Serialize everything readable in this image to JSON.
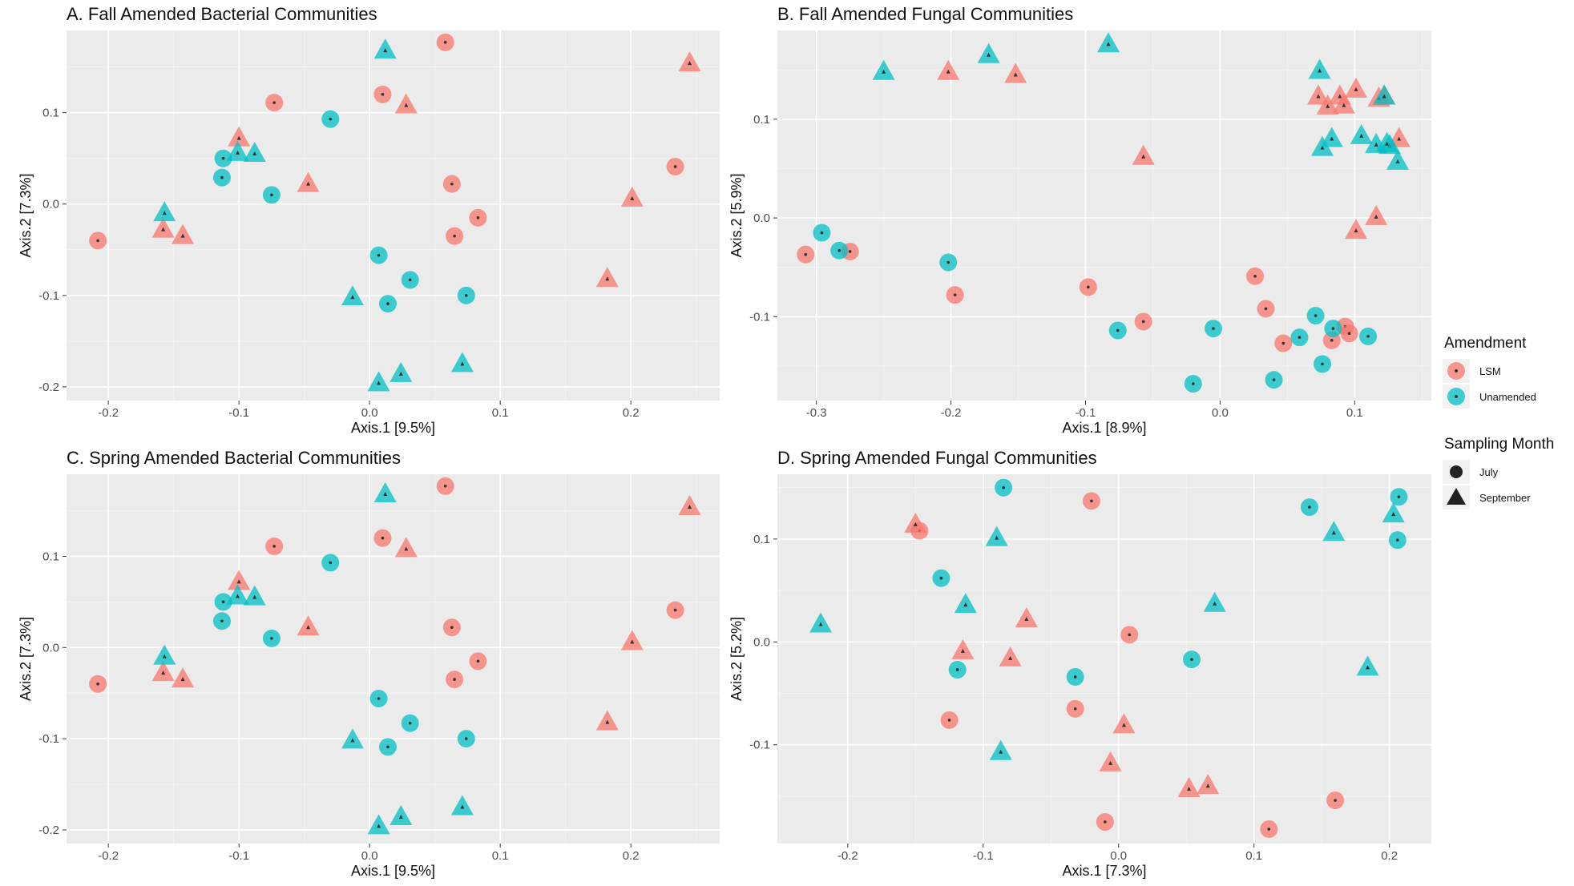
{
  "legend": {
    "amendment_title": "Amendment",
    "amendment_items": [
      {
        "label": "LSM",
        "color": "#F8766D"
      },
      {
        "label": "Unamended",
        "color": "#00BFC4"
      }
    ],
    "month_title": "Sampling Month",
    "month_items": [
      {
        "label": "July",
        "shape": "circle"
      },
      {
        "label": "September",
        "shape": "triangle"
      }
    ]
  },
  "chart_data": [
    {
      "type": "scatter",
      "title": "A. Fall Amended Bacterial Communities",
      "xlabel": "Axis.1   [9.5%]",
      "ylabel": "Axis.2   [7.3%]",
      "xlim": [
        -0.232,
        0.268
      ],
      "ylim": [
        -0.215,
        0.19
      ],
      "xticks": [
        -0.2,
        -0.1,
        0.0,
        0.1,
        0.2
      ],
      "xtick_labels": [
        "-0.2",
        "-0.1",
        "0.0",
        "0.1",
        "0.2"
      ],
      "yticks": [
        -0.2,
        -0.1,
        0.0,
        0.1
      ],
      "ytick_labels": [
        "-0.2",
        "-0.1",
        "0.0",
        "0.1"
      ],
      "grid": true,
      "series": [
        {
          "name": "LSM",
          "color": "#F8766D",
          "shape": "circle",
          "x": [
            -0.208,
            -0.073,
            0.058,
            0.01,
            0.063,
            0.065,
            0.083,
            0.234
          ],
          "y": [
            -0.04,
            0.111,
            0.177,
            0.12,
            0.022,
            -0.035,
            -0.015,
            0.041
          ]
        },
        {
          "name": "LSM",
          "color": "#F8766D",
          "shape": "triangle",
          "x": [
            -0.158,
            -0.143,
            -0.1,
            -0.047,
            0.028,
            0.182,
            0.201,
            0.245
          ],
          "y": [
            -0.028,
            -0.035,
            0.072,
            0.022,
            0.108,
            -0.082,
            0.006,
            0.154
          ]
        },
        {
          "name": "Unamended",
          "color": "#00BFC4",
          "shape": "circle",
          "x": [
            -0.112,
            -0.113,
            -0.075,
            -0.03,
            0.007,
            0.014,
            0.031,
            0.074
          ],
          "y": [
            0.05,
            0.029,
            0.01,
            0.093,
            -0.056,
            -0.109,
            -0.083,
            -0.1
          ]
        },
        {
          "name": "Unamended",
          "color": "#00BFC4",
          "shape": "triangle",
          "x": [
            -0.157,
            -0.101,
            -0.088,
            0.012,
            -0.013,
            0.007,
            0.024,
            0.071
          ],
          "y": [
            -0.01,
            0.056,
            0.055,
            0.168,
            -0.102,
            -0.196,
            -0.186,
            -0.175
          ]
        }
      ]
    },
    {
      "type": "scatter",
      "title": "B. Fall Amended Fungal Communities",
      "xlabel": "Axis.1   [8.9%]",
      "ylabel": "Axis.2   [5.9%]",
      "xlim": [
        -0.329,
        0.157
      ],
      "ylim": [
        -0.185,
        0.19
      ],
      "xticks": [
        -0.3,
        -0.2,
        -0.1,
        0.0,
        0.1
      ],
      "xtick_labels": [
        "-0.3",
        "-0.2",
        "-0.1",
        "0.0",
        "0.1"
      ],
      "yticks": [
        -0.1,
        0.0,
        0.1
      ],
      "ytick_labels": [
        "-0.1",
        "0.0",
        "0.1"
      ],
      "grid": true,
      "series": [
        {
          "name": "LSM",
          "color": "#F8766D",
          "shape": "circle",
          "x": [
            -0.308,
            -0.275,
            -0.197,
            -0.098,
            -0.057,
            0.026,
            0.034,
            0.047,
            0.083,
            0.093,
            0.096
          ],
          "y": [
            -0.037,
            -0.034,
            -0.078,
            -0.07,
            -0.105,
            -0.059,
            -0.092,
            -0.127,
            -0.124,
            -0.11,
            -0.117
          ]
        },
        {
          "name": "LSM",
          "color": "#F8766D",
          "shape": "triangle",
          "x": [
            -0.202,
            -0.152,
            -0.057,
            0.073,
            0.08,
            0.089,
            0.092,
            0.101,
            0.116,
            0.122,
            0.101,
            0.118,
            0.133
          ],
          "y": [
            0.148,
            0.145,
            0.062,
            0.123,
            0.113,
            0.123,
            0.114,
            0.13,
            0.001,
            0.123,
            -0.013,
            0.121,
            0.08
          ]
        },
        {
          "name": "Unamended",
          "color": "#00BFC4",
          "shape": "circle",
          "x": [
            -0.296,
            -0.283,
            -0.202,
            -0.076,
            -0.005,
            -0.02,
            0.04,
            0.059,
            0.071,
            0.076,
            0.084,
            0.11
          ],
          "y": [
            -0.015,
            -0.033,
            -0.045,
            -0.114,
            -0.112,
            -0.168,
            -0.164,
            -0.121,
            -0.099,
            -0.148,
            -0.112,
            -0.12
          ]
        },
        {
          "name": "Unamended",
          "color": "#00BFC4",
          "shape": "triangle",
          "x": [
            -0.25,
            -0.172,
            -0.083,
            0.074,
            0.076,
            0.083,
            0.105,
            0.116,
            0.122,
            0.126,
            0.124,
            0.132
          ],
          "y": [
            0.148,
            0.165,
            0.176,
            0.149,
            0.071,
            0.08,
            0.083,
            0.074,
            0.123,
            0.073,
            0.075,
            0.057
          ]
        }
      ]
    },
    {
      "type": "scatter",
      "title": "C. Spring Amended Bacterial Communities",
      "xlabel": "Axis.1   [9.5%]",
      "ylabel": "Axis.2   [7.3%]",
      "xlim": [
        -0.232,
        0.268
      ],
      "ylim": [
        -0.215,
        0.19
      ],
      "xticks": [
        -0.2,
        -0.1,
        0.0,
        0.1,
        0.2
      ],
      "xtick_labels": [
        "-0.2",
        "-0.1",
        "0.0",
        "0.1",
        "0.2"
      ],
      "yticks": [
        -0.2,
        -0.1,
        0.0,
        0.1
      ],
      "ytick_labels": [
        "-0.2",
        "-0.1",
        "0.0",
        "0.1"
      ],
      "grid": true,
      "series": [
        {
          "name": "LSM",
          "color": "#F8766D",
          "shape": "circle",
          "x": [
            -0.208,
            -0.073,
            0.058,
            0.01,
            0.063,
            0.065,
            0.083,
            0.234
          ],
          "y": [
            -0.04,
            0.111,
            0.177,
            0.12,
            0.022,
            -0.035,
            -0.015,
            0.041
          ]
        },
        {
          "name": "LSM",
          "color": "#F8766D",
          "shape": "triangle",
          "x": [
            -0.158,
            -0.143,
            -0.1,
            -0.047,
            0.028,
            0.182,
            0.201,
            0.245
          ],
          "y": [
            -0.028,
            -0.035,
            0.072,
            0.022,
            0.108,
            -0.082,
            0.006,
            0.154
          ]
        },
        {
          "name": "Unamended",
          "color": "#00BFC4",
          "shape": "circle",
          "x": [
            -0.112,
            -0.113,
            -0.075,
            -0.03,
            0.007,
            0.014,
            0.031,
            0.074
          ],
          "y": [
            0.05,
            0.029,
            0.01,
            0.093,
            -0.056,
            -0.109,
            -0.083,
            -0.1
          ]
        },
        {
          "name": "Unamended",
          "color": "#00BFC4",
          "shape": "triangle",
          "x": [
            -0.157,
            -0.101,
            -0.088,
            0.012,
            -0.013,
            0.007,
            0.024,
            0.071
          ],
          "y": [
            -0.01,
            0.056,
            0.055,
            0.168,
            -0.102,
            -0.196,
            -0.186,
            -0.175
          ]
        }
      ]
    },
    {
      "type": "scatter",
      "title": "D. Spring Amended Fungal Communities",
      "xlabel": "Axis.1   [7.3%]",
      "ylabel": "Axis.2   [5.2%]",
      "xlim": [
        -0.252,
        0.231
      ],
      "ylim": [
        -0.196,
        0.163
      ],
      "xticks": [
        -0.2,
        -0.1,
        0.0,
        0.1,
        0.2
      ],
      "xtick_labels": [
        "-0.2",
        "-0.1",
        "0.0",
        "0.1",
        "0.2"
      ],
      "yticks": [
        -0.1,
        0.0,
        0.1
      ],
      "ytick_labels": [
        "-0.1",
        "0.0",
        "0.1"
      ],
      "grid": true,
      "series": [
        {
          "name": "LSM",
          "color": "#F8766D",
          "shape": "circle",
          "x": [
            -0.147,
            -0.125,
            -0.032,
            -0.02,
            0.008,
            -0.01,
            0.111,
            0.16
          ],
          "y": [
            0.108,
            -0.076,
            -0.065,
            0.137,
            0.007,
            -0.175,
            -0.182,
            -0.154
          ]
        },
        {
          "name": "LSM",
          "color": "#F8766D",
          "shape": "triangle",
          "x": [
            -0.15,
            -0.115,
            -0.068,
            -0.08,
            0.004,
            -0.006,
            0.052,
            0.066
          ],
          "y": [
            0.114,
            -0.009,
            0.022,
            -0.016,
            -0.081,
            -0.118,
            -0.143,
            -0.14
          ]
        },
        {
          "name": "Unamended",
          "color": "#00BFC4",
          "shape": "circle",
          "x": [
            -0.131,
            -0.119,
            -0.085,
            -0.032,
            0.054,
            0.141,
            0.206,
            0.207
          ],
          "y": [
            0.062,
            -0.027,
            0.15,
            -0.034,
            -0.017,
            0.131,
            0.099,
            0.141
          ]
        },
        {
          "name": "Unamended",
          "color": "#00BFC4",
          "shape": "triangle",
          "x": [
            -0.22,
            -0.09,
            -0.113,
            -0.087,
            0.071,
            0.159,
            0.184,
            0.203
          ],
          "y": [
            0.017,
            0.101,
            0.036,
            -0.107,
            0.037,
            0.106,
            -0.025,
            0.124
          ]
        }
      ]
    }
  ]
}
